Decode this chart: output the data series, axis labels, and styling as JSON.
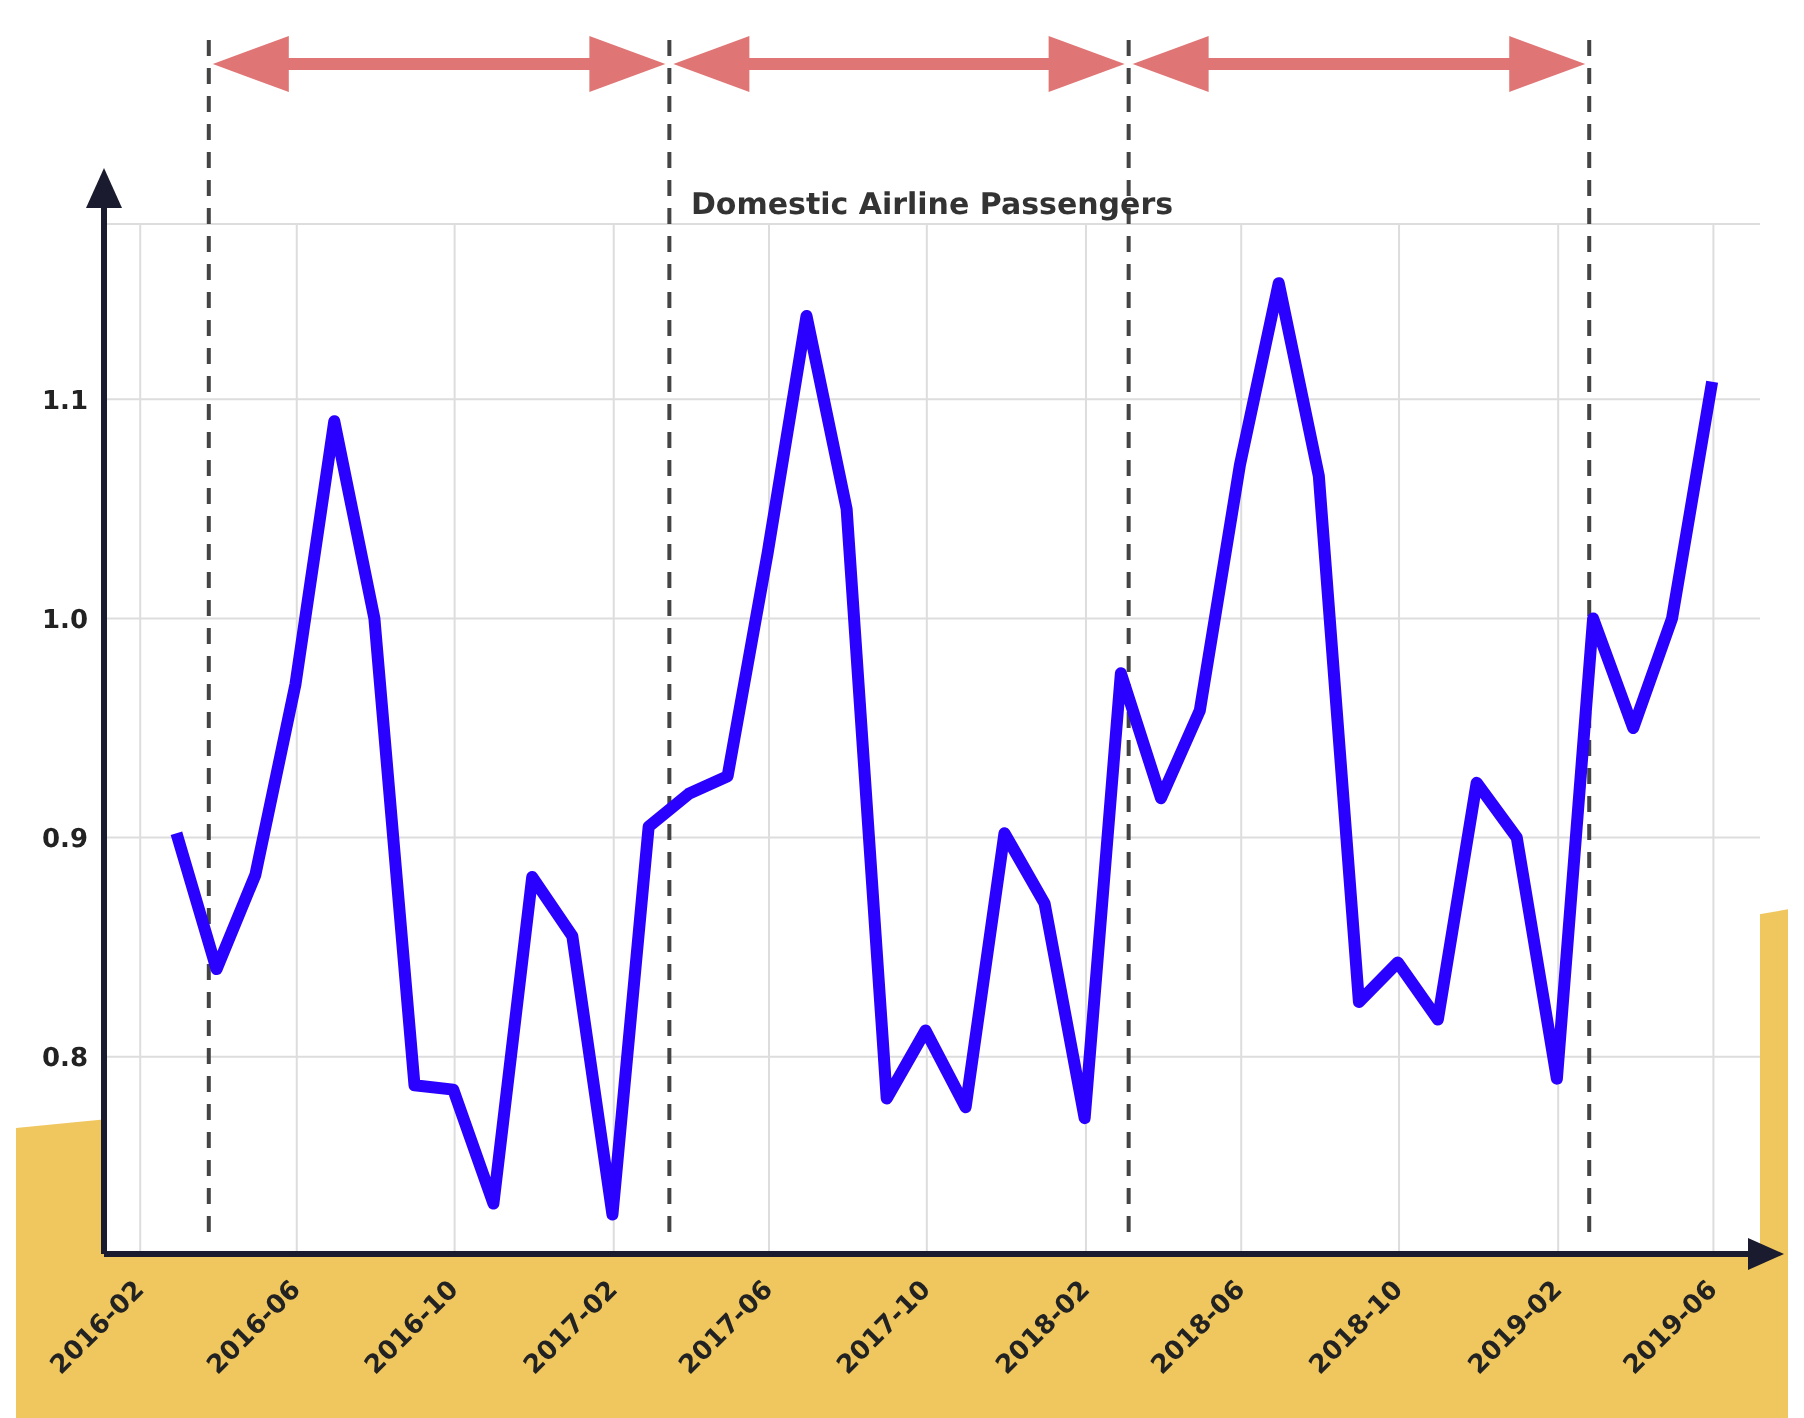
{
  "chart_data": {
    "type": "line",
    "title": "Domestic Airline Passengers",
    "x": [
      "2016-02-29",
      "2016-03-31",
      "2016-04-30",
      "2016-05-31",
      "2016-06-30",
      "2016-07-31",
      "2016-08-31",
      "2016-09-30",
      "2016-10-31",
      "2016-11-30",
      "2016-12-31",
      "2017-01-31",
      "2017-02-28",
      "2017-03-31",
      "2017-04-30",
      "2017-05-31",
      "2017-06-30",
      "2017-07-31",
      "2017-08-31",
      "2017-09-30",
      "2017-10-31",
      "2017-11-30",
      "2017-12-31",
      "2018-01-31",
      "2018-02-28",
      "2018-03-31",
      "2018-04-30",
      "2018-05-31",
      "2018-06-30",
      "2018-07-31",
      "2018-08-31",
      "2018-09-30",
      "2018-10-31",
      "2018-11-30",
      "2018-12-31",
      "2019-01-31",
      "2019-02-28",
      "2019-03-31",
      "2019-04-30",
      "2019-05-31"
    ],
    "series": [
      {
        "color": "#2a00ff",
        "values": [
          0.902,
          0.84,
          0.883,
          0.97,
          1.09,
          1.0,
          0.787,
          0.785,
          0.733,
          0.882,
          0.855,
          0.728,
          0.905,
          0.92,
          0.928,
          1.03,
          1.138,
          1.05,
          0.781,
          0.812,
          0.777,
          0.902,
          0.87,
          0.772,
          0.975,
          0.918,
          0.958,
          1.07,
          1.153,
          1.065,
          0.825,
          0.843,
          0.817,
          0.925,
          0.9,
          0.79,
          1.0,
          0.95,
          1.0,
          1.108
        ]
      }
    ],
    "xlim": [
      "2016-01-04",
      "2019-07-07"
    ],
    "xticks": [
      "2016-02",
      "2016-06",
      "2016-10",
      "2017-02",
      "2017-06",
      "2017-10",
      "2018-02",
      "2018-06",
      "2018-10",
      "2019-02",
      "2019-06"
    ],
    "ylim": [
      0.71,
      1.18
    ],
    "yticks": [
      0.8,
      0.9,
      {
        "value": 1.0,
        "label": "1.0"
      },
      1.1
    ],
    "ref_lines": [
      {
        "axis": "x",
        "value": "2016-03-25",
        "color": "#444444",
        "line_style": "dashed"
      },
      {
        "axis": "x",
        "value": "2017-03-16",
        "color": "#444444",
        "line_style": "dashed"
      },
      {
        "axis": "x",
        "value": "2018-03-06",
        "color": "#444444",
        "line_style": "dashed"
      },
      {
        "axis": "x",
        "value": "2019-02-25",
        "color": "#444444",
        "line_style": "dashed"
      }
    ],
    "grid": true,
    "marker": "none",
    "line_style": "solid"
  }
}
